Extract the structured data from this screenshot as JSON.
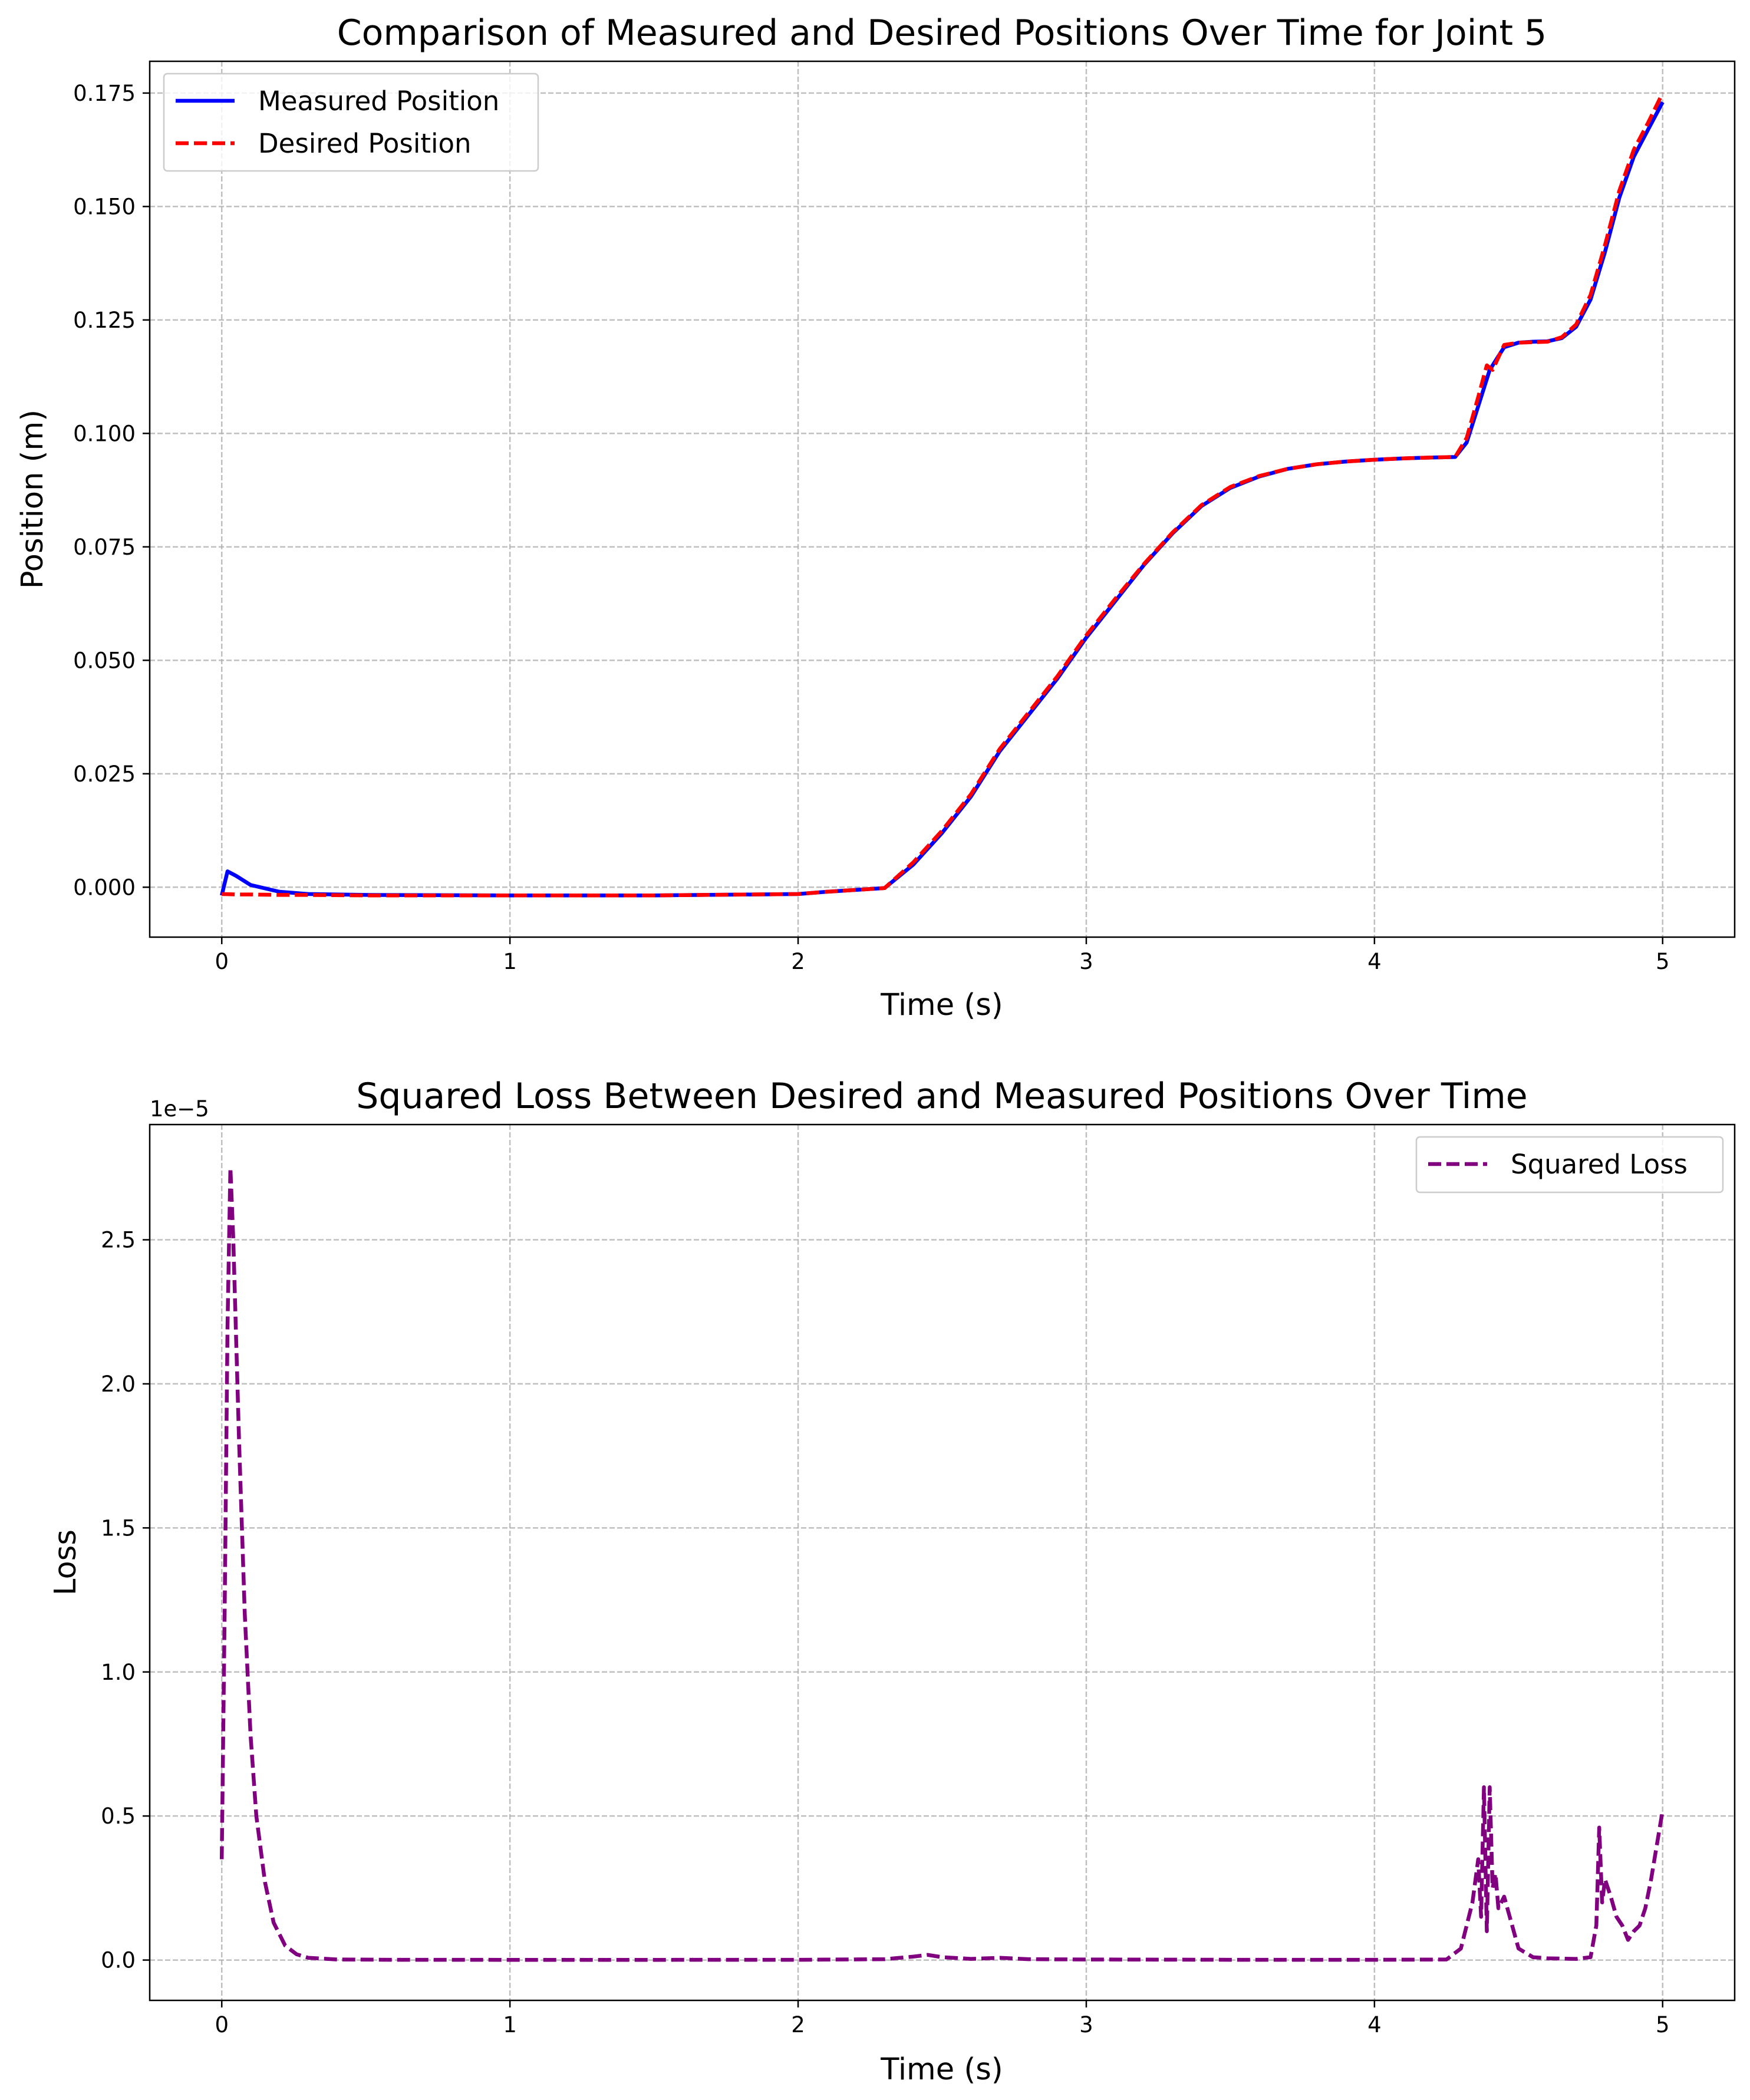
{
  "chart_data": [
    {
      "type": "line",
      "title": "Comparison of Measured and Desired Positions Over Time for Joint 5",
      "xlabel": "Time (s)",
      "ylabel": "Position (m)",
      "xlim": [
        -0.25,
        5.25
      ],
      "ylim": [
        -0.011,
        0.182
      ],
      "xticks": [
        0,
        1,
        2,
        3,
        4,
        5
      ],
      "xtick_labels": [
        "0",
        "1",
        "2",
        "3",
        "4",
        "5"
      ],
      "yticks": [
        0.0,
        0.025,
        0.05,
        0.075,
        0.1,
        0.125,
        0.15,
        0.175
      ],
      "ytick_labels": [
        "0.000",
        "0.025",
        "0.050",
        "0.075",
        "0.100",
        "0.125",
        "0.150",
        "0.175"
      ],
      "grid": true,
      "legend": "top-left",
      "series": [
        {
          "name": "Measured Position",
          "color": "#0000ff",
          "style": "solid",
          "x": [
            0,
            0.02,
            0.05,
            0.1,
            0.2,
            0.3,
            0.5,
            1.0,
            1.5,
            2.0,
            2.1,
            2.2,
            2.3,
            2.4,
            2.5,
            2.6,
            2.7,
            2.8,
            2.9,
            3.0,
            3.1,
            3.2,
            3.3,
            3.4,
            3.5,
            3.6,
            3.7,
            3.8,
            3.9,
            4.0,
            4.1,
            4.2,
            4.28,
            4.32,
            4.36,
            4.4,
            4.45,
            4.5,
            4.55,
            4.6,
            4.65,
            4.7,
            4.75,
            4.8,
            4.85,
            4.9,
            4.95,
            5.0
          ],
          "y": [
            -0.0018,
            0.0035,
            0.0025,
            0.0005,
            -0.001,
            -0.0015,
            -0.0017,
            -0.0018,
            -0.0018,
            -0.0015,
            -0.001,
            -0.0006,
            -0.0002,
            0.005,
            0.012,
            0.02,
            0.03,
            0.038,
            0.046,
            0.055,
            0.063,
            0.071,
            0.078,
            0.084,
            0.088,
            0.0905,
            0.0922,
            0.0932,
            0.0938,
            0.0942,
            0.0945,
            0.0947,
            0.0948,
            0.098,
            0.106,
            0.114,
            0.119,
            0.12,
            0.1202,
            0.1203,
            0.121,
            0.1235,
            0.1295,
            0.14,
            0.152,
            0.161,
            0.167,
            0.173
          ]
        },
        {
          "name": "Desired Position",
          "color": "#ff0000",
          "style": "dashed",
          "x": [
            0,
            0.05,
            0.1,
            0.2,
            0.3,
            0.5,
            1.0,
            1.5,
            2.0,
            2.1,
            2.2,
            2.3,
            2.4,
            2.5,
            2.6,
            2.7,
            2.8,
            2.9,
            3.0,
            3.1,
            3.2,
            3.3,
            3.4,
            3.5,
            3.6,
            3.7,
            3.8,
            3.9,
            4.0,
            4.1,
            4.2,
            4.28,
            4.32,
            4.36,
            4.39,
            4.41,
            4.45,
            4.5,
            4.55,
            4.6,
            4.65,
            4.7,
            4.75,
            4.8,
            4.85,
            4.9,
            4.95,
            5.0
          ],
          "y": [
            -0.0015,
            -0.0016,
            -0.0016,
            -0.0017,
            -0.0017,
            -0.0018,
            -0.0018,
            -0.0018,
            -0.0015,
            -0.001,
            -0.0006,
            -0.0002,
            0.0055,
            0.0125,
            0.0205,
            0.0305,
            0.0385,
            0.0465,
            0.0555,
            0.0635,
            0.0712,
            0.0782,
            0.0842,
            0.0882,
            0.0906,
            0.0922,
            0.0932,
            0.0938,
            0.0942,
            0.0945,
            0.0947,
            0.0948,
            0.099,
            0.108,
            0.115,
            0.114,
            0.1195,
            0.12,
            0.1201,
            0.1202,
            0.1212,
            0.124,
            0.1305,
            0.1415,
            0.1535,
            0.1625,
            0.1685,
            0.175
          ]
        }
      ]
    },
    {
      "type": "line",
      "title": "Squared Loss Between Desired and Measured Positions Over Time",
      "xlabel": "Time (s)",
      "ylabel": "Loss",
      "offset_text": "1e−5",
      "y_unit_scale": 1e-05,
      "xlim": [
        -0.25,
        5.25
      ],
      "ylim": [
        -0.14,
        2.9
      ],
      "xticks": [
        0,
        1,
        2,
        3,
        4,
        5
      ],
      "xtick_labels": [
        "0",
        "1",
        "2",
        "3",
        "4",
        "5"
      ],
      "yticks": [
        0.0,
        0.5,
        1.0,
        1.5,
        2.0,
        2.5
      ],
      "ytick_labels": [
        "0.0",
        "0.5",
        "1.0",
        "1.5",
        "2.0",
        "2.5"
      ],
      "grid": true,
      "legend": "top-right",
      "series": [
        {
          "name": "Squared Loss",
          "color": "#800080",
          "style": "dashed",
          "x": [
            0,
            0.01,
            0.02,
            0.03,
            0.04,
            0.06,
            0.08,
            0.1,
            0.12,
            0.15,
            0.18,
            0.22,
            0.26,
            0.3,
            0.4,
            0.6,
            1.0,
            1.5,
            2.0,
            2.3,
            2.4,
            2.45,
            2.5,
            2.6,
            2.7,
            2.8,
            3.0,
            3.5,
            4.0,
            4.25,
            4.3,
            4.32,
            4.34,
            4.36,
            4.37,
            4.38,
            4.39,
            4.4,
            4.41,
            4.42,
            4.43,
            4.45,
            4.5,
            4.55,
            4.6,
            4.7,
            4.75,
            4.77,
            4.78,
            4.79,
            4.8,
            4.82,
            4.84,
            4.86,
            4.88,
            4.9,
            4.92,
            4.94,
            4.96,
            4.98,
            5.0
          ],
          "y": [
            0.35,
            1.2,
            2.2,
            2.75,
            2.5,
            1.8,
            1.2,
            0.78,
            0.5,
            0.27,
            0.13,
            0.05,
            0.02,
            0.008,
            0.002,
            0.001,
            0.0008,
            0.0008,
            0.001,
            0.003,
            0.012,
            0.018,
            0.01,
            0.004,
            0.008,
            0.003,
            0.002,
            0.001,
            0.001,
            0.002,
            0.04,
            0.12,
            0.2,
            0.35,
            0.15,
            0.6,
            0.1,
            0.6,
            0.25,
            0.3,
            0.18,
            0.22,
            0.04,
            0.01,
            0.006,
            0.004,
            0.01,
            0.12,
            0.46,
            0.2,
            0.28,
            0.22,
            0.15,
            0.12,
            0.07,
            0.1,
            0.12,
            0.18,
            0.28,
            0.4,
            0.52
          ]
        }
      ]
    }
  ]
}
